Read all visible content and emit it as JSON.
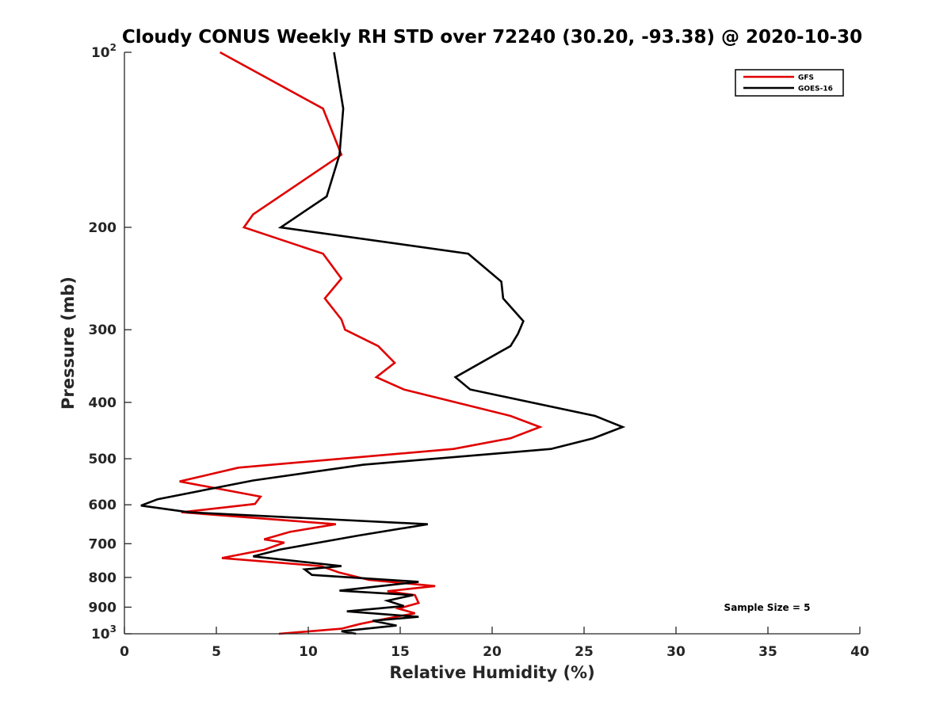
{
  "chart_data": {
    "type": "line",
    "title": "Cloudy CONUS Weekly RH STD over 72240 (30.20, -93.38) @ 2020-10-30",
    "xlabel": "Relative Humidity (%)",
    "ylabel": "Pressure (mb)",
    "xlim": [
      0,
      40
    ],
    "ylim": [
      100,
      1000
    ],
    "yscale": "log",
    "y_reversed": false,
    "xticks": [
      0,
      5,
      10,
      15,
      20,
      25,
      30,
      35,
      40
    ],
    "xtick_labels": [
      "0",
      "5",
      "10",
      "15",
      "20",
      "25",
      "30",
      "35",
      "40"
    ],
    "yticks": [
      {
        "value": 100,
        "base": "10",
        "exp": "2"
      },
      {
        "value": 200,
        "label": "200"
      },
      {
        "value": 300,
        "label": "300"
      },
      {
        "value": 400,
        "label": "400"
      },
      {
        "value": 500,
        "label": "500"
      },
      {
        "value": 600,
        "label": "600"
      },
      {
        "value": 700,
        "label": "700"
      },
      {
        "value": 800,
        "label": "800"
      },
      {
        "value": 900,
        "label": "900"
      },
      {
        "value": 1000,
        "base": "10",
        "exp": "3"
      }
    ],
    "legend": {
      "position": "top-right"
    },
    "annotation": "Sample Size = 5",
    "series": [
      {
        "name": "GFS",
        "color": "#e00000",
        "points": [
          [
            5.2,
            100
          ],
          [
            10.8,
            125
          ],
          [
            11.8,
            150
          ],
          [
            7.0,
            190
          ],
          [
            6.5,
            200
          ],
          [
            10.8,
            222
          ],
          [
            11.8,
            245
          ],
          [
            10.9,
            265
          ],
          [
            11.8,
            288
          ],
          [
            12.0,
            300
          ],
          [
            13.8,
            320
          ],
          [
            14.7,
            342
          ],
          [
            13.7,
            362
          ],
          [
            15.2,
            380
          ],
          [
            21.0,
            422
          ],
          [
            22.6,
            441
          ],
          [
            21.0,
            461
          ],
          [
            17.9,
            481
          ],
          [
            6.2,
            518
          ],
          [
            3.0,
            547
          ],
          [
            7.4,
            581
          ],
          [
            7.1,
            598
          ],
          [
            3.1,
            618
          ],
          [
            11.5,
            648
          ],
          [
            9.0,
            668
          ],
          [
            7.6,
            688
          ],
          [
            8.7,
            697
          ],
          [
            7.6,
            717
          ],
          [
            5.3,
            741
          ],
          [
            10.7,
            765
          ],
          [
            11.7,
            785
          ],
          [
            13.3,
            808
          ],
          [
            16.9,
            828
          ],
          [
            14.3,
            845
          ],
          [
            15.8,
            858
          ],
          [
            16.0,
            885
          ],
          [
            14.9,
            905
          ],
          [
            15.8,
            922
          ],
          [
            14.0,
            945
          ],
          [
            12.8,
            962
          ],
          [
            11.8,
            980
          ],
          [
            8.4,
            1000
          ]
        ]
      },
      {
        "name": "GOES-16",
        "color": "#000000",
        "points": [
          [
            11.4,
            100
          ],
          [
            11.9,
            125
          ],
          [
            11.7,
            150
          ],
          [
            11.0,
            177
          ],
          [
            8.5,
            200
          ],
          [
            18.7,
            222
          ],
          [
            20.5,
            248
          ],
          [
            20.6,
            265
          ],
          [
            21.7,
            290
          ],
          [
            21.4,
            305
          ],
          [
            21.0,
            320
          ],
          [
            18.0,
            362
          ],
          [
            18.8,
            380
          ],
          [
            25.6,
            422
          ],
          [
            27.1,
            441
          ],
          [
            25.5,
            461
          ],
          [
            23.2,
            481
          ],
          [
            13.0,
            512
          ],
          [
            7.0,
            545
          ],
          [
            1.8,
            587
          ],
          [
            0.9,
            602
          ],
          [
            3.5,
            618
          ],
          [
            16.5,
            648
          ],
          [
            12.7,
            678
          ],
          [
            8.5,
            716
          ],
          [
            7.0,
            736
          ],
          [
            11.8,
            765
          ],
          [
            9.8,
            775
          ],
          [
            10.2,
            792
          ],
          [
            16.0,
            814
          ],
          [
            11.7,
            843
          ],
          [
            15.7,
            858
          ],
          [
            14.3,
            877
          ],
          [
            15.2,
            896
          ],
          [
            12.1,
            915
          ],
          [
            16.0,
            935
          ],
          [
            13.5,
            950
          ],
          [
            14.8,
            968
          ],
          [
            11.8,
            990
          ],
          [
            12.6,
            1000
          ]
        ]
      }
    ]
  }
}
